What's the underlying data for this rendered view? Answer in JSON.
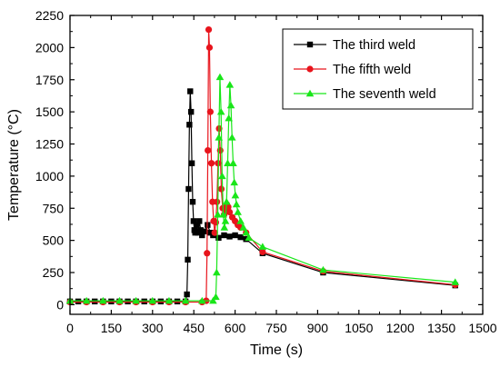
{
  "chart_data": {
    "type": "line",
    "title": "",
    "xlabel": "Time (s)",
    "ylabel": "Temperature (°C)",
    "xlim": [
      0,
      1500
    ],
    "ylim": [
      -75,
      2250
    ],
    "xticks": [
      "0",
      "150",
      "300",
      "450",
      "600",
      "750",
      "900",
      "1050",
      "1200",
      "1350",
      "1500"
    ],
    "yticks": [
      "0",
      "250",
      "500",
      "750",
      "1000",
      "1250",
      "1500",
      "1750",
      "2000",
      "2250"
    ],
    "grid": false,
    "legend_position": "top-right",
    "series": [
      {
        "name": "The third weld",
        "color": "#000000",
        "marker": "square",
        "x": [
          0,
          30,
          60,
          90,
          120,
          150,
          180,
          210,
          240,
          270,
          300,
          330,
          360,
          390,
          420,
          425,
          428,
          431,
          434,
          437,
          440,
          443,
          446,
          449,
          452,
          455,
          460,
          465,
          470,
          475,
          480,
          490,
          500,
          510,
          520,
          540,
          560,
          580,
          600,
          620,
          640,
          700,
          920,
          1400
        ],
        "y": [
          25,
          25,
          25,
          25,
          25,
          25,
          25,
          25,
          25,
          25,
          25,
          25,
          25,
          25,
          25,
          80,
          350,
          900,
          1400,
          1660,
          1500,
          1100,
          800,
          650,
          580,
          560,
          620,
          560,
          650,
          580,
          540,
          570,
          620,
          560,
          540,
          520,
          540,
          530,
          540,
          525,
          510,
          400,
          250,
          150
        ]
      },
      {
        "name": "The fifth weld",
        "color": "#e8141c",
        "marker": "circle",
        "x": [
          0,
          60,
          120,
          180,
          240,
          300,
          360,
          420,
          480,
          495,
          498,
          501,
          504,
          507,
          510,
          514,
          518,
          522,
          526,
          530,
          534,
          538,
          542,
          546,
          550,
          555,
          560,
          565,
          570,
          575,
          580,
          590,
          600,
          610,
          620,
          640,
          700,
          920,
          1400
        ],
        "y": [
          20,
          20,
          20,
          20,
          20,
          20,
          20,
          20,
          20,
          30,
          400,
          1200,
          2140,
          2000,
          1500,
          1100,
          800,
          650,
          560,
          640,
          800,
          1100,
          1370,
          1200,
          900,
          750,
          700,
          720,
          780,
          760,
          720,
          680,
          650,
          620,
          600,
          560,
          410,
          260,
          155
        ]
      },
      {
        "name": "The seventh weld",
        "color": "#19e619",
        "marker": "triangle",
        "x": [
          0,
          60,
          120,
          180,
          240,
          300,
          360,
          420,
          480,
          520,
          530,
          533,
          537,
          541,
          545,
          549,
          553,
          557,
          561,
          565,
          569,
          573,
          577,
          581,
          585,
          589,
          593,
          597,
          601,
          605,
          610,
          620,
          630,
          640,
          650,
          700,
          920,
          1400
        ],
        "y": [
          30,
          30,
          30,
          30,
          30,
          30,
          30,
          30,
          30,
          30,
          60,
          250,
          700,
          1300,
          1770,
          1500,
          1000,
          700,
          600,
          650,
          800,
          1100,
          1450,
          1710,
          1550,
          1300,
          1100,
          950,
          850,
          780,
          720,
          650,
          600,
          560,
          520,
          450,
          270,
          175
        ]
      }
    ]
  }
}
